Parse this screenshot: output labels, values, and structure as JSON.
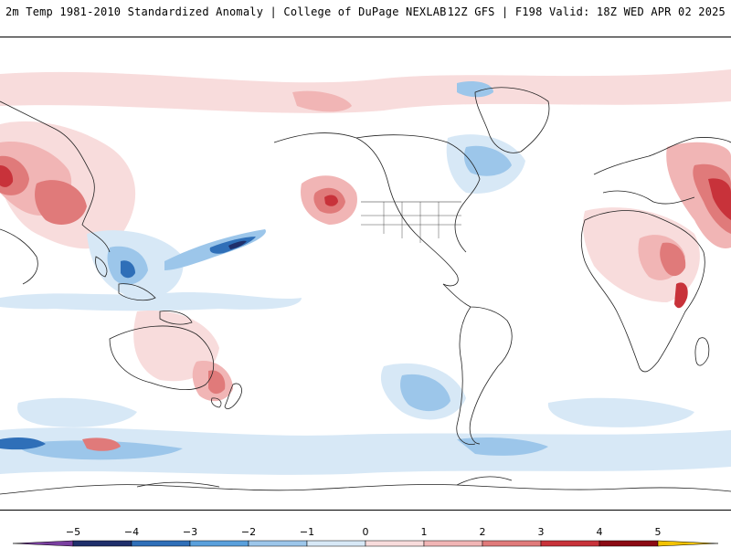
{
  "header": {
    "left_title": "2m Temp 1981-2010 Standardized Anomaly | College of DuPage NEXLAB",
    "right_title": "12Z GFS | F198 Valid: 18Z WED APR 02 2025"
  },
  "colorbar": {
    "tick_labels": [
      "−5",
      "−4",
      "−3",
      "−2",
      "−1",
      "0",
      "1",
      "2",
      "3",
      "4",
      "5"
    ],
    "min_color": "#7a3fa0",
    "max_color": "#f2c200",
    "bins": [
      {
        "from": -5,
        "to": -4,
        "color": "#1f2f6b"
      },
      {
        "from": -4,
        "to": -3,
        "color": "#2f6fb8"
      },
      {
        "from": -3,
        "to": -2,
        "color": "#5aa0dc"
      },
      {
        "from": -2,
        "to": -1,
        "color": "#9cc6ea"
      },
      {
        "from": -1,
        "to": 0,
        "color": "#d7e8f6"
      },
      {
        "from": 0,
        "to": 1,
        "color": "#f8dcdc"
      },
      {
        "from": 1,
        "to": 2,
        "color": "#f1b5b5"
      },
      {
        "from": 2,
        "to": 3,
        "color": "#e07a7a"
      },
      {
        "from": 3,
        "to": 4,
        "color": "#c8323a"
      },
      {
        "from": 4,
        "to": 5,
        "color": "#8c0a14"
      }
    ]
  },
  "map": {
    "projection": "global-equirectangular-pacific-centered",
    "background": "#ffffff",
    "outline_color": "#222222"
  }
}
